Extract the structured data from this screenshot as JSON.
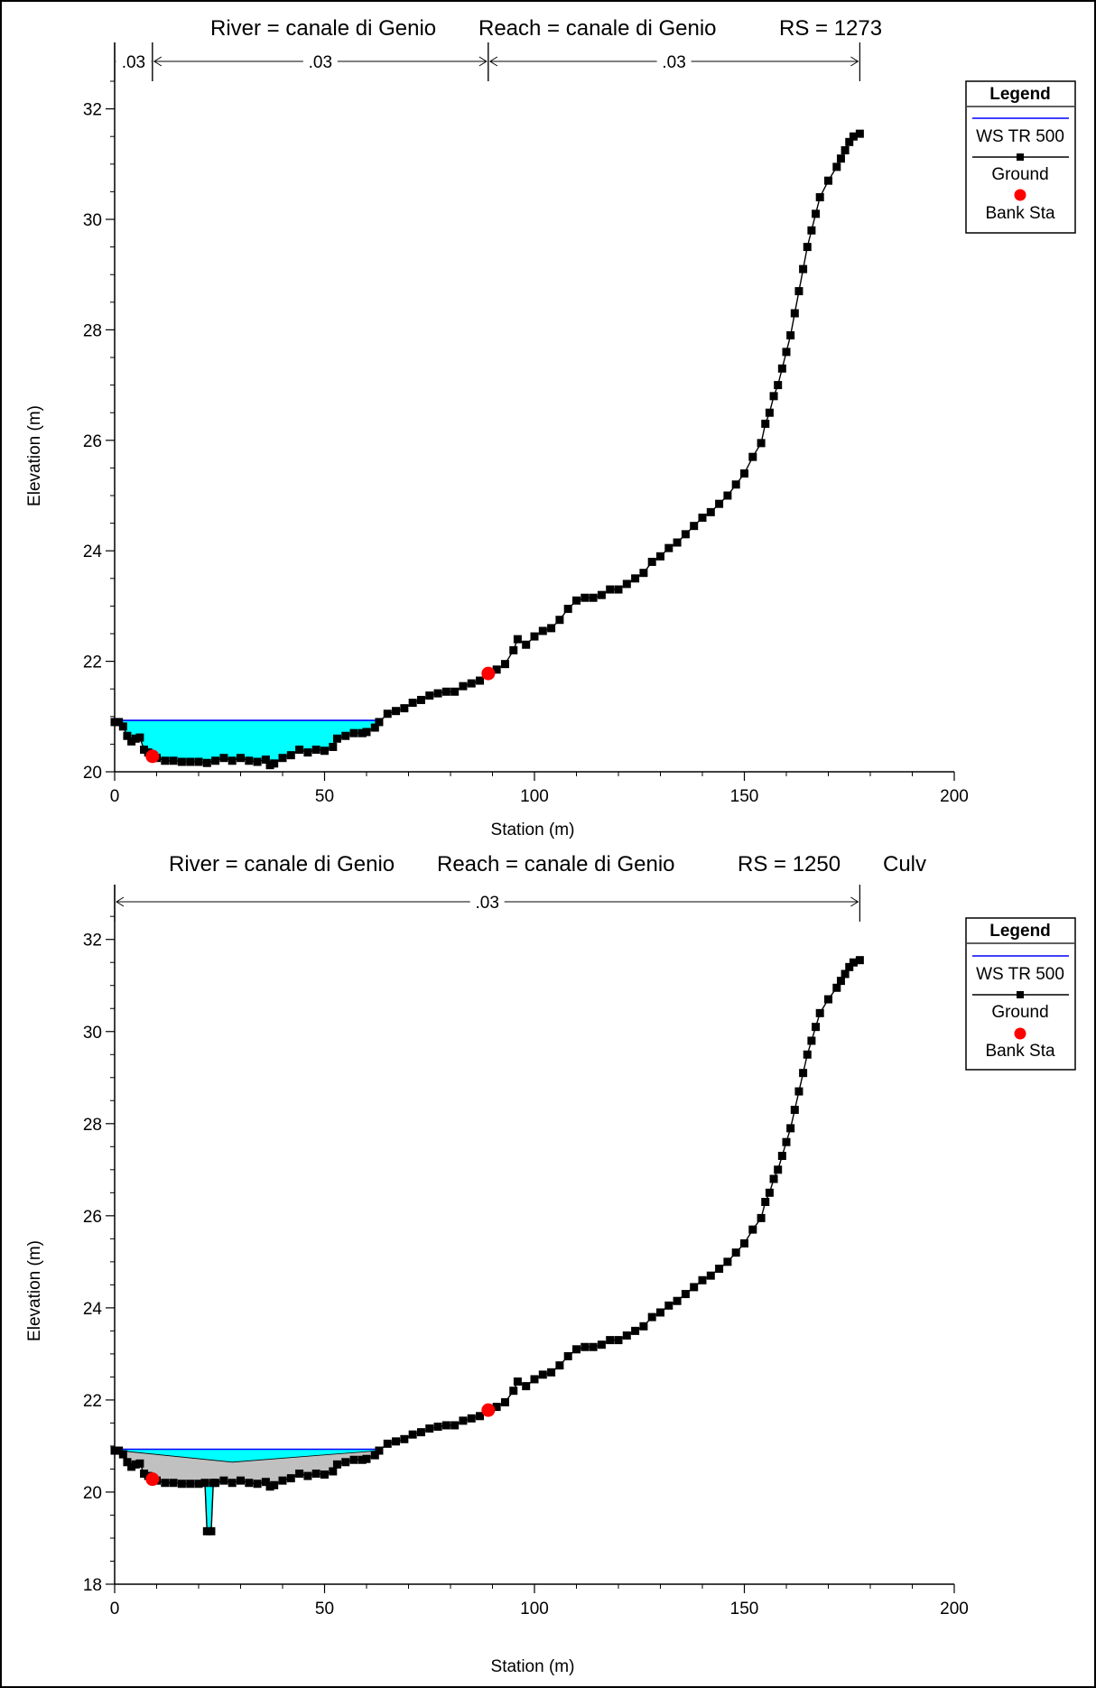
{
  "chart_data": [
    {
      "type": "line",
      "title": {
        "river": "River = canale di Genio",
        "reach": "Reach = canale di Genio",
        "rs": "RS = 1273",
        "extra": ""
      },
      "xlabel": "Station (m)",
      "ylabel": "Elevation (m)",
      "xlim": [
        0,
        200
      ],
      "ylim": [
        20,
        32.5
      ],
      "xticks": [
        0,
        50,
        100,
        150,
        200
      ],
      "yticks": [
        20,
        22,
        24,
        26,
        28,
        30,
        32
      ],
      "manning": [
        {
          "from": 0,
          "to": 9,
          "label": ".03"
        },
        {
          "from": 9,
          "to": 89,
          "label": ".03"
        },
        {
          "from": 89,
          "to": 177.5,
          "label": ".03"
        }
      ],
      "legend": {
        "title": "Legend",
        "entries": [
          "WS TR 500",
          "Ground",
          "Bank Sta"
        ],
        "placement": "top-right"
      },
      "colors": {
        "water": "#00ffff",
        "ws_line": "#0000ff",
        "bank": "#ff0000",
        "ground": "#000000"
      },
      "water_surface": 20.93,
      "bank_stations": [
        [
          9,
          20.28
        ],
        [
          89,
          21.78
        ]
      ],
      "ground": [
        [
          0,
          20.9
        ],
        [
          1,
          20.9
        ],
        [
          2,
          20.82
        ],
        [
          3,
          20.65
        ],
        [
          4,
          20.55
        ],
        [
          5,
          20.6
        ],
        [
          6,
          20.62
        ],
        [
          7,
          20.4
        ],
        [
          8,
          20.35
        ],
        [
          9,
          20.28
        ],
        [
          10,
          20.25
        ],
        [
          12,
          20.2
        ],
        [
          14,
          20.2
        ],
        [
          16,
          20.18
        ],
        [
          18,
          20.18
        ],
        [
          20,
          20.18
        ],
        [
          22,
          20.16
        ],
        [
          24,
          20.2
        ],
        [
          26,
          20.25
        ],
        [
          28,
          20.2
        ],
        [
          30,
          20.25
        ],
        [
          32,
          20.2
        ],
        [
          34,
          20.18
        ],
        [
          36,
          20.22
        ],
        [
          37,
          20.12
        ],
        [
          38,
          20.15
        ],
        [
          40,
          20.25
        ],
        [
          42,
          20.3
        ],
        [
          44,
          20.4
        ],
        [
          46,
          20.35
        ],
        [
          48,
          20.4
        ],
        [
          50,
          20.38
        ],
        [
          52,
          20.45
        ],
        [
          53,
          20.6
        ],
        [
          55,
          20.65
        ],
        [
          57,
          20.7
        ],
        [
          59,
          20.7
        ],
        [
          60,
          20.72
        ],
        [
          62,
          20.8
        ],
        [
          63,
          20.9
        ],
        [
          65,
          21.05
        ],
        [
          67,
          21.1
        ],
        [
          69,
          21.15
        ],
        [
          71,
          21.25
        ],
        [
          73,
          21.3
        ],
        [
          75,
          21.38
        ],
        [
          77,
          21.42
        ],
        [
          79,
          21.45
        ],
        [
          81,
          21.45
        ],
        [
          83,
          21.55
        ],
        [
          85,
          21.6
        ],
        [
          87,
          21.65
        ],
        [
          89,
          21.78
        ],
        [
          91,
          21.85
        ],
        [
          93,
          21.95
        ],
        [
          95,
          22.2
        ],
        [
          96,
          22.4
        ],
        [
          98,
          22.3
        ],
        [
          100,
          22.45
        ],
        [
          102,
          22.55
        ],
        [
          104,
          22.6
        ],
        [
          106,
          22.75
        ],
        [
          108,
          22.95
        ],
        [
          110,
          23.1
        ],
        [
          112,
          23.15
        ],
        [
          114,
          23.15
        ],
        [
          116,
          23.2
        ],
        [
          118,
          23.3
        ],
        [
          120,
          23.3
        ],
        [
          122,
          23.4
        ],
        [
          124,
          23.5
        ],
        [
          126,
          23.6
        ],
        [
          128,
          23.8
        ],
        [
          130,
          23.9
        ],
        [
          132,
          24.05
        ],
        [
          134,
          24.15
        ],
        [
          136,
          24.3
        ],
        [
          138,
          24.45
        ],
        [
          140,
          24.6
        ],
        [
          142,
          24.7
        ],
        [
          144,
          24.85
        ],
        [
          146,
          25.0
        ],
        [
          148,
          25.2
        ],
        [
          150,
          25.4
        ],
        [
          152,
          25.7
        ],
        [
          154,
          25.95
        ],
        [
          155,
          26.3
        ],
        [
          156,
          26.5
        ],
        [
          157,
          26.8
        ],
        [
          158,
          27.0
        ],
        [
          159,
          27.3
        ],
        [
          160,
          27.6
        ],
        [
          161,
          27.9
        ],
        [
          162,
          28.3
        ],
        [
          163,
          28.7
        ],
        [
          164,
          29.1
        ],
        [
          165,
          29.5
        ],
        [
          166,
          29.8
        ],
        [
          167,
          30.1
        ],
        [
          168,
          30.4
        ],
        [
          170,
          30.7
        ],
        [
          172,
          30.95
        ],
        [
          173,
          31.1
        ],
        [
          174,
          31.25
        ],
        [
          175,
          31.4
        ],
        [
          176,
          31.5
        ],
        [
          177.5,
          31.55
        ]
      ]
    },
    {
      "type": "line",
      "title": {
        "river": "River = canale di Genio",
        "reach": "Reach = canale di Genio",
        "rs": "RS = 1250",
        "extra": "Culv"
      },
      "xlabel": "Station (m)",
      "ylabel": "Elevation (m)",
      "xlim": [
        0,
        200
      ],
      "ylim": [
        18,
        32.7
      ],
      "xticks": [
        0,
        50,
        100,
        150,
        200
      ],
      "yticks": [
        18,
        20,
        22,
        24,
        26,
        28,
        30,
        32
      ],
      "manning": [
        {
          "from": 0,
          "to": 177.5,
          "label": ".03"
        }
      ],
      "legend": {
        "title": "Legend",
        "entries": [
          "WS TR 500",
          "Ground",
          "Bank Sta"
        ],
        "placement": "top-right"
      },
      "colors": {
        "water": "#00ffff",
        "ws_line": "#0000ff",
        "bank": "#ff0000",
        "ground": "#000000",
        "culvert": "#c0c0c0"
      },
      "water_surface": 20.93,
      "culvert_top": [
        [
          1,
          20.9
        ],
        [
          28,
          20.65
        ],
        [
          63,
          20.9
        ]
      ],
      "culvert_pipe": [
        [
          21.5,
          20.2
        ],
        [
          22,
          19.15
        ],
        [
          23,
          19.15
        ],
        [
          23.5,
          20.2
        ]
      ],
      "bank_stations": [
        [
          9,
          20.28
        ],
        [
          89,
          21.78
        ]
      ],
      "ground": [
        [
          0,
          20.9
        ],
        [
          1,
          20.9
        ],
        [
          2,
          20.82
        ],
        [
          3,
          20.65
        ],
        [
          4,
          20.55
        ],
        [
          5,
          20.6
        ],
        [
          6,
          20.62
        ],
        [
          7,
          20.4
        ],
        [
          8,
          20.35
        ],
        [
          9,
          20.28
        ],
        [
          10,
          20.25
        ],
        [
          12,
          20.2
        ],
        [
          14,
          20.2
        ],
        [
          16,
          20.18
        ],
        [
          18,
          20.18
        ],
        [
          20,
          20.18
        ],
        [
          21.5,
          20.2
        ],
        [
          22,
          19.15
        ],
        [
          23,
          19.15
        ],
        [
          23.5,
          20.2
        ],
        [
          24,
          20.2
        ],
        [
          26,
          20.25
        ],
        [
          28,
          20.2
        ],
        [
          30,
          20.25
        ],
        [
          32,
          20.2
        ],
        [
          34,
          20.18
        ],
        [
          36,
          20.22
        ],
        [
          37,
          20.12
        ],
        [
          38,
          20.15
        ],
        [
          40,
          20.25
        ],
        [
          42,
          20.3
        ],
        [
          44,
          20.4
        ],
        [
          46,
          20.35
        ],
        [
          48,
          20.4
        ],
        [
          50,
          20.38
        ],
        [
          52,
          20.45
        ],
        [
          53,
          20.6
        ],
        [
          55,
          20.65
        ],
        [
          57,
          20.7
        ],
        [
          59,
          20.7
        ],
        [
          60,
          20.72
        ],
        [
          62,
          20.8
        ],
        [
          63,
          20.9
        ],
        [
          65,
          21.05
        ],
        [
          67,
          21.1
        ],
        [
          69,
          21.15
        ],
        [
          71,
          21.25
        ],
        [
          73,
          21.3
        ],
        [
          75,
          21.38
        ],
        [
          77,
          21.42
        ],
        [
          79,
          21.45
        ],
        [
          81,
          21.45
        ],
        [
          83,
          21.55
        ],
        [
          85,
          21.6
        ],
        [
          87,
          21.65
        ],
        [
          89,
          21.78
        ],
        [
          91,
          21.85
        ],
        [
          93,
          21.95
        ],
        [
          95,
          22.2
        ],
        [
          96,
          22.4
        ],
        [
          98,
          22.3
        ],
        [
          100,
          22.45
        ],
        [
          102,
          22.55
        ],
        [
          104,
          22.6
        ],
        [
          106,
          22.75
        ],
        [
          108,
          22.95
        ],
        [
          110,
          23.1
        ],
        [
          112,
          23.15
        ],
        [
          114,
          23.15
        ],
        [
          116,
          23.2
        ],
        [
          118,
          23.3
        ],
        [
          120,
          23.3
        ],
        [
          122,
          23.4
        ],
        [
          124,
          23.5
        ],
        [
          126,
          23.6
        ],
        [
          128,
          23.8
        ],
        [
          130,
          23.9
        ],
        [
          132,
          24.05
        ],
        [
          134,
          24.15
        ],
        [
          136,
          24.3
        ],
        [
          138,
          24.45
        ],
        [
          140,
          24.6
        ],
        [
          142,
          24.7
        ],
        [
          144,
          24.85
        ],
        [
          146,
          25.0
        ],
        [
          148,
          25.2
        ],
        [
          150,
          25.4
        ],
        [
          152,
          25.7
        ],
        [
          154,
          25.95
        ],
        [
          155,
          26.3
        ],
        [
          156,
          26.5
        ],
        [
          157,
          26.8
        ],
        [
          158,
          27.0
        ],
        [
          159,
          27.3
        ],
        [
          160,
          27.6
        ],
        [
          161,
          27.9
        ],
        [
          162,
          28.3
        ],
        [
          163,
          28.7
        ],
        [
          164,
          29.1
        ],
        [
          165,
          29.5
        ],
        [
          166,
          29.8
        ],
        [
          167,
          30.1
        ],
        [
          168,
          30.4
        ],
        [
          170,
          30.7
        ],
        [
          172,
          30.95
        ],
        [
          173,
          31.1
        ],
        [
          174,
          31.25
        ],
        [
          175,
          31.4
        ],
        [
          176,
          31.5
        ],
        [
          177.5,
          31.55
        ]
      ]
    }
  ]
}
